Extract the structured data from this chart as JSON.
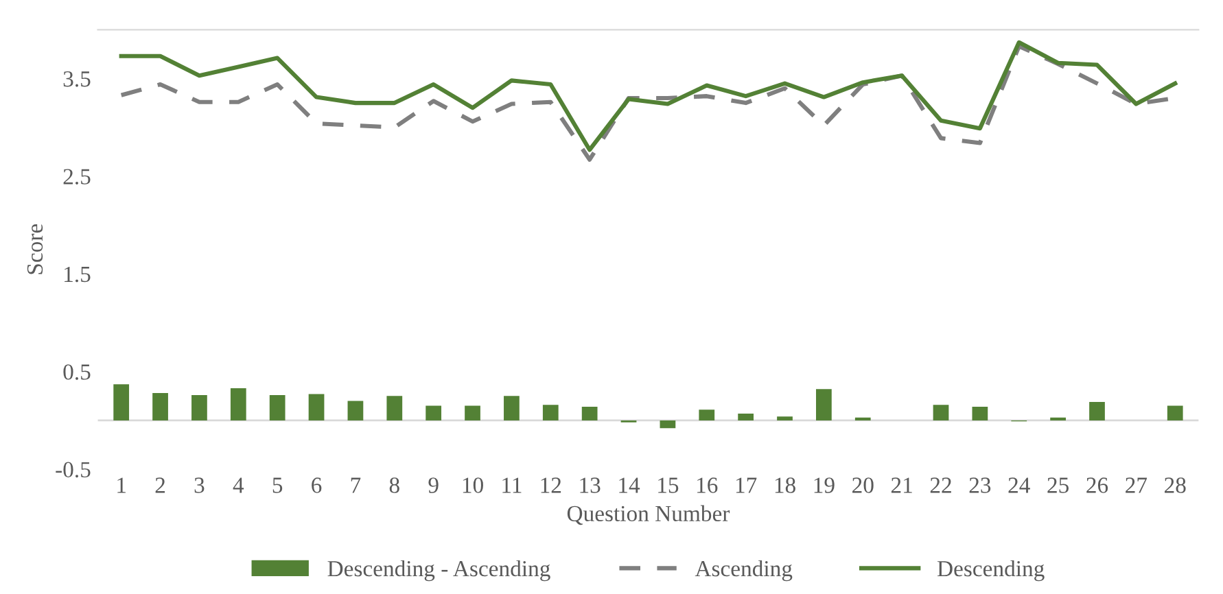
{
  "chart_data": {
    "type": "bar",
    "xlabel": "Question Number",
    "ylabel": "Score",
    "categories": [
      "1",
      "2",
      "3",
      "4",
      "5",
      "6",
      "7",
      "8",
      "9",
      "10",
      "11",
      "12",
      "13",
      "14",
      "15",
      "16",
      "17",
      "18",
      "19",
      "20",
      "21",
      "22",
      "23",
      "24",
      "25",
      "26",
      "27",
      "28"
    ],
    "series": [
      {
        "name": "Descending - Ascending",
        "color": "#538135",
        "values": [
          0.37,
          0.28,
          0.26,
          0.33,
          0.26,
          0.27,
          0.2,
          0.25,
          0.15,
          0.15,
          0.25,
          0.16,
          0.14,
          -0.02,
          -0.08,
          0.11,
          0.07,
          0.04,
          0.32,
          0.03,
          0.0,
          0.16,
          0.14,
          -0.01,
          0.03,
          0.19,
          0.0,
          0.15
        ]
      },
      {
        "name": "Ascending",
        "type": "line",
        "line_style": "dashed",
        "color": "#7f7f7f",
        "values": [
          3.33,
          3.44,
          3.26,
          3.26,
          3.44,
          3.04,
          3.02,
          3.0,
          3.27,
          3.06,
          3.24,
          3.26,
          2.67,
          3.3,
          3.3,
          3.32,
          3.25,
          3.4,
          3.02,
          3.44,
          3.53,
          2.89,
          2.84,
          3.83,
          3.65,
          3.45,
          3.24,
          3.3
        ]
      },
      {
        "name": "Descending",
        "type": "line",
        "line_style": "solid",
        "color": "#538135",
        "values": [
          3.73,
          3.73,
          3.53,
          3.62,
          3.71,
          3.31,
          3.25,
          3.25,
          3.44,
          3.2,
          3.48,
          3.44,
          2.77,
          3.29,
          3.24,
          3.43,
          3.32,
          3.45,
          3.31,
          3.46,
          3.53,
          3.07,
          2.99,
          3.87,
          3.66,
          3.64,
          3.24,
          3.45
        ]
      }
    ],
    "ylim": [
      -0.5,
      4.0
    ],
    "yticks": [
      -0.5,
      0.5,
      1.5,
      2.5,
      3.5
    ],
    "grid": false,
    "legend": "bottom",
    "marker": "none"
  }
}
